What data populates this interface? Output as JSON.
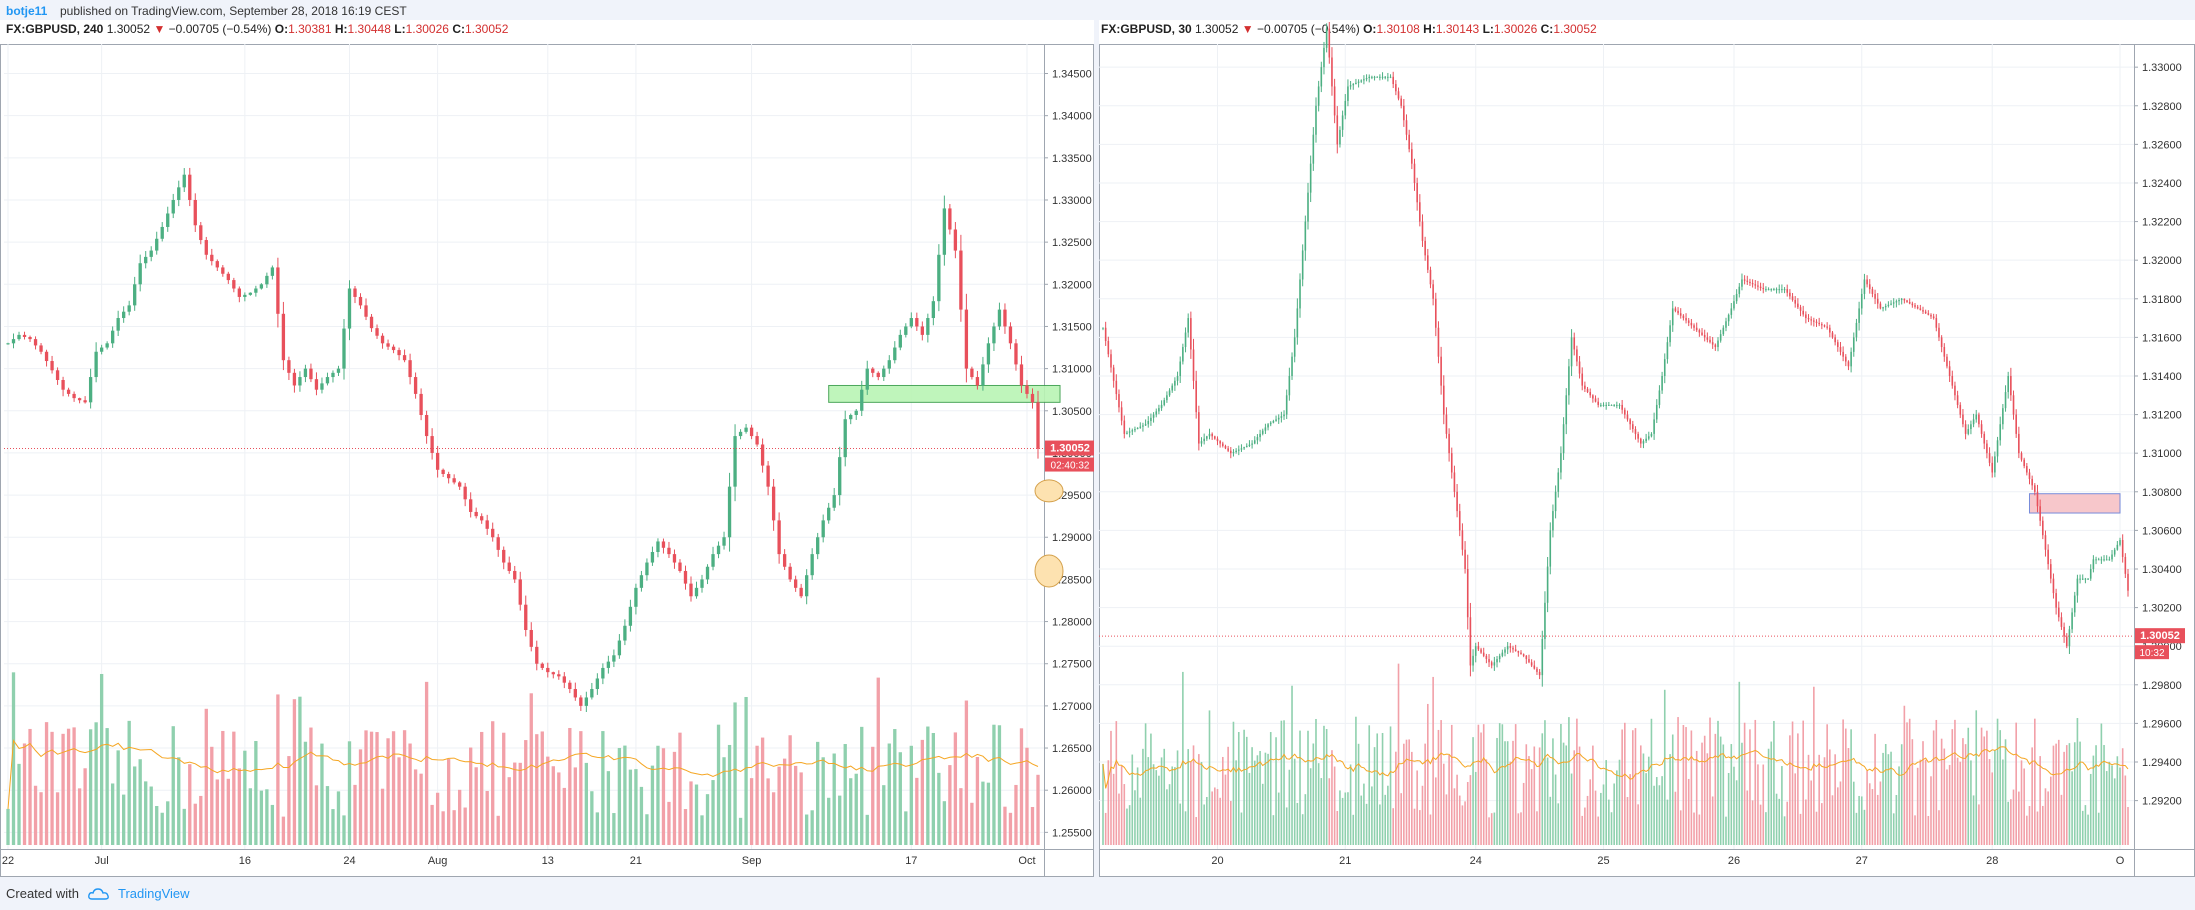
{
  "header": {
    "user": "botje11",
    "published": "published on TradingView.com, September 28, 2018 16:19 CEST"
  },
  "left_panel": {
    "symbol": "FX:GBPUSD, 240",
    "last": "1.30052",
    "change": "−0.00705 (−0.54%)",
    "o_label": "O:",
    "o_value": "1.30381",
    "h_label": "H:",
    "h_value": "1.30448",
    "l_label": "L:",
    "l_value": "1.30026",
    "c_label": "C:",
    "c_value": "1.30052",
    "price_tag": "1.30052",
    "countdown": "02:40:32"
  },
  "right_panel": {
    "symbol": "FX:GBPUSD, 30",
    "last": "1.30052",
    "change": "−0.00705 (−0.54%)",
    "o_label": "O:",
    "o_value": "1.30108",
    "h_label": "H:",
    "h_value": "1.30143",
    "l_label": "L:",
    "l_value": "1.30026",
    "c_label": "C:",
    "c_value": "1.30052",
    "price_tag": "1.30052",
    "countdown": "10:32"
  },
  "colors": {
    "up": "#4caf82",
    "down": "#e8505b",
    "vol_up": "#8fd0ae",
    "vol_down": "#f2a0a8",
    "ma": "#f5a623",
    "price_line": "#e8505b",
    "green_zone": "#b9f5b4",
    "red_zone": "#f7c1c6",
    "ellipse": "#fde2b0"
  },
  "chart_data": [
    {
      "type": "candlestick",
      "symbol": "FX:GBPUSD",
      "interval": "240",
      "y_ticks": [
        "1.34500",
        "1.34000",
        "1.33500",
        "1.33000",
        "1.32500",
        "1.32000",
        "1.31500",
        "1.31000",
        "1.30500",
        "1.30000",
        "1.29500",
        "1.29000",
        "1.28500",
        "1.28000",
        "1.27500",
        "1.27000",
        "1.26500",
        "1.26000",
        "1.25500"
      ],
      "y_tick_values": [
        1.345,
        1.34,
        1.335,
        1.33,
        1.325,
        1.32,
        1.315,
        1.31,
        1.305,
        1.3,
        1.295,
        1.29,
        1.285,
        1.28,
        1.275,
        1.27,
        1.265,
        1.26,
        1.255
      ],
      "ylim": [
        1.2535,
        1.3485
      ],
      "x_ticks": [
        "22",
        "Jul",
        "16",
        "24",
        "Aug",
        "13",
        "21",
        "Sep",
        "17",
        "Oct"
      ],
      "x_tick_index": [
        0,
        17,
        43,
        62,
        78,
        98,
        114,
        135,
        164,
        185
      ],
      "x_count": 188,
      "close_path": [
        [
          0,
          1.313
        ],
        [
          2,
          1.314
        ],
        [
          4,
          1.3135
        ],
        [
          6,
          1.312
        ],
        [
          8,
          1.3098
        ],
        [
          10,
          1.3075
        ],
        [
          12,
          1.3065
        ],
        [
          14,
          1.306
        ],
        [
          16,
          1.312
        ],
        [
          18,
          1.313
        ],
        [
          20,
          1.316
        ],
        [
          22,
          1.3175
        ],
        [
          24,
          1.3225
        ],
        [
          26,
          1.324
        ],
        [
          28,
          1.3268
        ],
        [
          30,
          1.33
        ],
        [
          32,
          1.333
        ],
        [
          34,
          1.327
        ],
        [
          36,
          1.3235
        ],
        [
          38,
          1.322
        ],
        [
          40,
          1.3205
        ],
        [
          42,
          1.3185
        ],
        [
          44,
          1.319
        ],
        [
          46,
          1.32
        ],
        [
          48,
          1.322
        ],
        [
          50,
          1.311
        ],
        [
          52,
          1.308
        ],
        [
          54,
          1.31
        ],
        [
          56,
          1.3075
        ],
        [
          58,
          1.309
        ],
        [
          60,
          1.31
        ],
        [
          62,
          1.3195
        ],
        [
          64,
          1.3175
        ],
        [
          66,
          1.3148
        ],
        [
          68,
          1.313
        ],
        [
          70,
          1.3122
        ],
        [
          72,
          1.311
        ],
        [
          74,
          1.307
        ],
        [
          76,
          1.302
        ],
        [
          78,
          1.298
        ],
        [
          80,
          1.297
        ],
        [
          82,
          1.296
        ],
        [
          84,
          1.293
        ],
        [
          86,
          1.292
        ],
        [
          88,
          1.29
        ],
        [
          90,
          1.287
        ],
        [
          92,
          1.285
        ],
        [
          94,
          1.279
        ],
        [
          96,
          1.275
        ],
        [
          98,
          1.274
        ],
        [
          100,
          1.2735
        ],
        [
          102,
          1.272
        ],
        [
          104,
          1.27
        ],
        [
          106,
          1.272
        ],
        [
          108,
          1.2745
        ],
        [
          110,
          1.276
        ],
        [
          112,
          1.2795
        ],
        [
          114,
          1.284
        ],
        [
          116,
          1.287
        ],
        [
          118,
          1.2895
        ],
        [
          120,
          1.288
        ],
        [
          122,
          1.286
        ],
        [
          124,
          1.283
        ],
        [
          126,
          1.285
        ],
        [
          128,
          1.288
        ],
        [
          130,
          1.29
        ],
        [
          132,
          1.302
        ],
        [
          134,
          1.303
        ],
        [
          136,
          1.301
        ],
        [
          138,
          1.296
        ],
        [
          140,
          1.288
        ],
        [
          142,
          1.285
        ],
        [
          144,
          1.283
        ],
        [
          146,
          1.288
        ],
        [
          148,
          1.292
        ],
        [
          150,
          1.295
        ],
        [
          152,
          1.304
        ],
        [
          154,
          1.305
        ],
        [
          156,
          1.31
        ],
        [
          158,
          1.309
        ],
        [
          160,
          1.311
        ],
        [
          162,
          1.314
        ],
        [
          164,
          1.316
        ],
        [
          166,
          1.314
        ],
        [
          168,
          1.318
        ],
        [
          170,
          1.329
        ],
        [
          172,
          1.324
        ],
        [
          174,
          1.31
        ],
        [
          176,
          1.308
        ],
        [
          178,
          1.313
        ],
        [
          180,
          1.317
        ],
        [
          182,
          1.313
        ],
        [
          184,
          1.308
        ],
        [
          186,
          1.306
        ],
        [
          187,
          1.3005
        ]
      ],
      "last_price": 1.30052,
      "zone": {
        "y_top": 1.308,
        "y_bottom": 1.306,
        "x_start": 149,
        "x_end": 191
      },
      "ellipses": [
        {
          "x": 189,
          "y": 1.2955
        },
        {
          "x": 189,
          "y": 1.286
        }
      ]
    },
    {
      "type": "candlestick",
      "symbol": "FX:GBPUSD",
      "interval": "30",
      "y_ticks": [
        "1.33000",
        "1.32800",
        "1.32600",
        "1.32400",
        "1.32200",
        "1.32000",
        "1.31800",
        "1.31600",
        "1.31400",
        "1.31200",
        "1.31000",
        "1.30800",
        "1.30600",
        "1.30400",
        "1.30200",
        "1.30000",
        "1.29800",
        "1.29600",
        "1.29400",
        "1.29200"
      ],
      "y_tick_values": [
        1.33,
        1.328,
        1.326,
        1.324,
        1.322,
        1.32,
        1.318,
        1.316,
        1.314,
        1.312,
        1.31,
        1.308,
        1.306,
        1.304,
        1.302,
        1.3,
        1.298,
        1.296,
        1.294,
        1.292
      ],
      "ylim": [
        1.2897,
        1.3312
      ],
      "x_ticks": [
        "20",
        "21",
        "24",
        "25",
        "26",
        "27",
        "28",
        "O"
      ],
      "x_tick_index": [
        43,
        91,
        140,
        188,
        237,
        285,
        334,
        382
      ],
      "x_count": 386,
      "close_path": [
        [
          0,
          1.3165
        ],
        [
          8,
          1.311
        ],
        [
          16,
          1.3115
        ],
        [
          22,
          1.3125
        ],
        [
          28,
          1.314
        ],
        [
          32,
          1.317
        ],
        [
          36,
          1.3105
        ],
        [
          40,
          1.311
        ],
        [
          48,
          1.31
        ],
        [
          56,
          1.3105
        ],
        [
          62,
          1.3115
        ],
        [
          68,
          1.312
        ],
        [
          72,
          1.316
        ],
        [
          76,
          1.322
        ],
        [
          80,
          1.328
        ],
        [
          84,
          1.332
        ],
        [
          88,
          1.326
        ],
        [
          92,
          1.329
        ],
        [
          100,
          1.3295
        ],
        [
          108,
          1.3295
        ],
        [
          112,
          1.328
        ],
        [
          116,
          1.325
        ],
        [
          120,
          1.321
        ],
        [
          124,
          1.318
        ],
        [
          128,
          1.312
        ],
        [
          132,
          1.308
        ],
        [
          136,
          1.304
        ],
        [
          138,
          1.299
        ],
        [
          140,
          1.3
        ],
        [
          146,
          1.299
        ],
        [
          152,
          1.3
        ],
        [
          158,
          1.2995
        ],
        [
          164,
          1.2985
        ],
        [
          168,
          1.306
        ],
        [
          172,
          1.31
        ],
        [
          176,
          1.316
        ],
        [
          180,
          1.3135
        ],
        [
          186,
          1.3125
        ],
        [
          194,
          1.3125
        ],
        [
          202,
          1.3105
        ],
        [
          206,
          1.311
        ],
        [
          210,
          1.314
        ],
        [
          214,
          1.3175
        ],
        [
          222,
          1.3165
        ],
        [
          230,
          1.3155
        ],
        [
          236,
          1.3175
        ],
        [
          240,
          1.319
        ],
        [
          248,
          1.3185
        ],
        [
          256,
          1.3185
        ],
        [
          264,
          1.317
        ],
        [
          272,
          1.3165
        ],
        [
          280,
          1.3145
        ],
        [
          286,
          1.319
        ],
        [
          292,
          1.3175
        ],
        [
          300,
          1.318
        ],
        [
          306,
          1.3175
        ],
        [
          312,
          1.317
        ],
        [
          318,
          1.314
        ],
        [
          324,
          1.311
        ],
        [
          328,
          1.312
        ],
        [
          334,
          1.309
        ],
        [
          340,
          1.314
        ],
        [
          344,
          1.31
        ],
        [
          350,
          1.308
        ],
        [
          354,
          1.305
        ],
        [
          358,
          1.302
        ],
        [
          362,
          1.3
        ],
        [
          366,
          1.3035
        ],
        [
          370,
          1.3035
        ],
        [
          372,
          1.3045
        ],
        [
          378,
          1.3045
        ],
        [
          382,
          1.3055
        ],
        [
          386,
          1.302
        ],
        [
          390,
          1.299
        ],
        [
          394,
          1.297
        ],
        [
          398,
          1.2965
        ],
        [
          402,
          1.296
        ],
        [
          406,
          1.294
        ],
        [
          410,
          1.292
        ],
        [
          414,
          1.2912
        ]
      ],
      "last_price": 1.30052,
      "zone": {
        "y_top": 1.3079,
        "y_bottom": 1.3069,
        "x_start": 348,
        "x_end": 382
      }
    }
  ]
}
